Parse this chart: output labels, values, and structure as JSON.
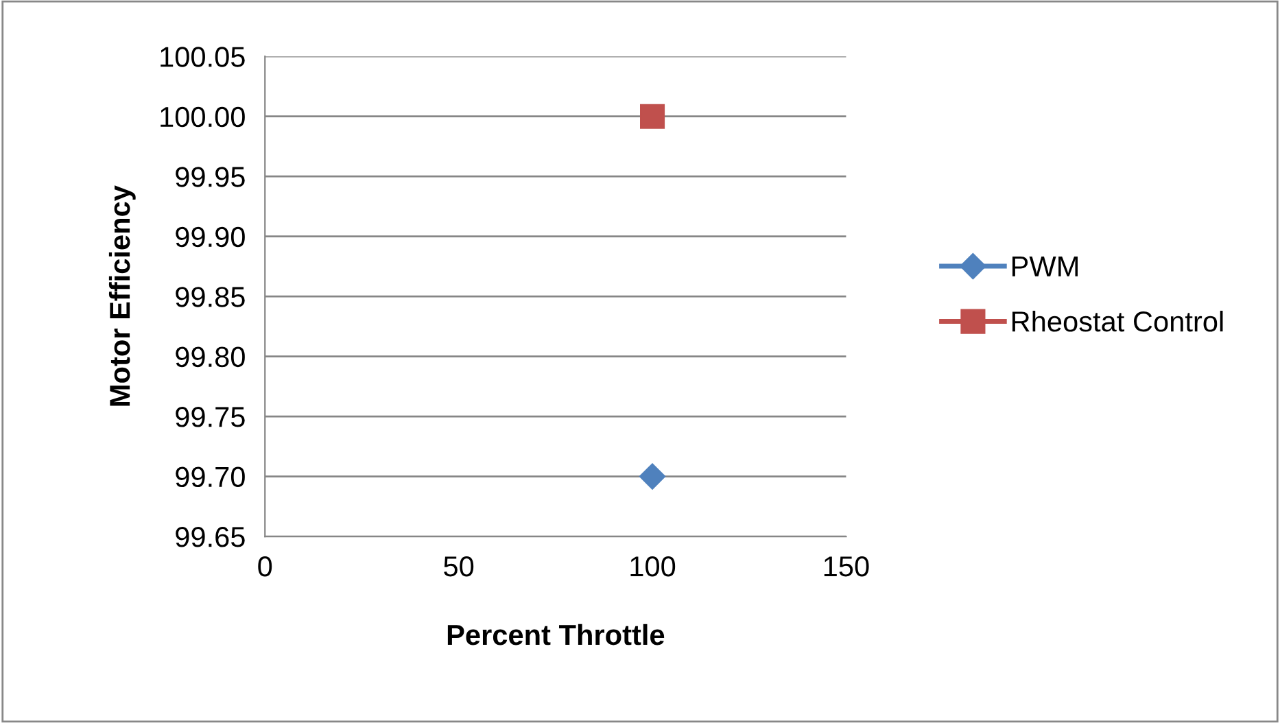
{
  "chart_data": {
    "type": "line",
    "xlabel": "Percent Throttle",
    "ylabel": "Motor Efficiency",
    "xlim": [
      0,
      150
    ],
    "xticks": [
      0,
      50,
      100,
      150
    ],
    "ylim": [
      99.65,
      100.05
    ],
    "yticks": [
      {
        "value": 99.65,
        "label": "99.65"
      },
      {
        "value": 99.7,
        "label": "99.70"
      },
      {
        "value": 99.75,
        "label": "99.75"
      },
      {
        "value": 99.8,
        "label": "99.80"
      },
      {
        "value": 99.85,
        "label": "99.85"
      },
      {
        "value": 99.9,
        "label": "99.90"
      },
      {
        "value": 99.95,
        "label": "99.95"
      },
      {
        "value": 100.0,
        "label": "100.00"
      },
      {
        "value": 100.05,
        "label": "100.05"
      }
    ],
    "grid": "y",
    "legend": "right",
    "series": [
      {
        "name": "PWM",
        "color": "#4f81bd",
        "marker": "diamond",
        "x": [
          100
        ],
        "values": [
          99.7
        ]
      },
      {
        "name": "Rheostat Control",
        "color": "#c0504d",
        "marker": "square",
        "x": [
          100
        ],
        "values": [
          100.0
        ]
      }
    ]
  }
}
